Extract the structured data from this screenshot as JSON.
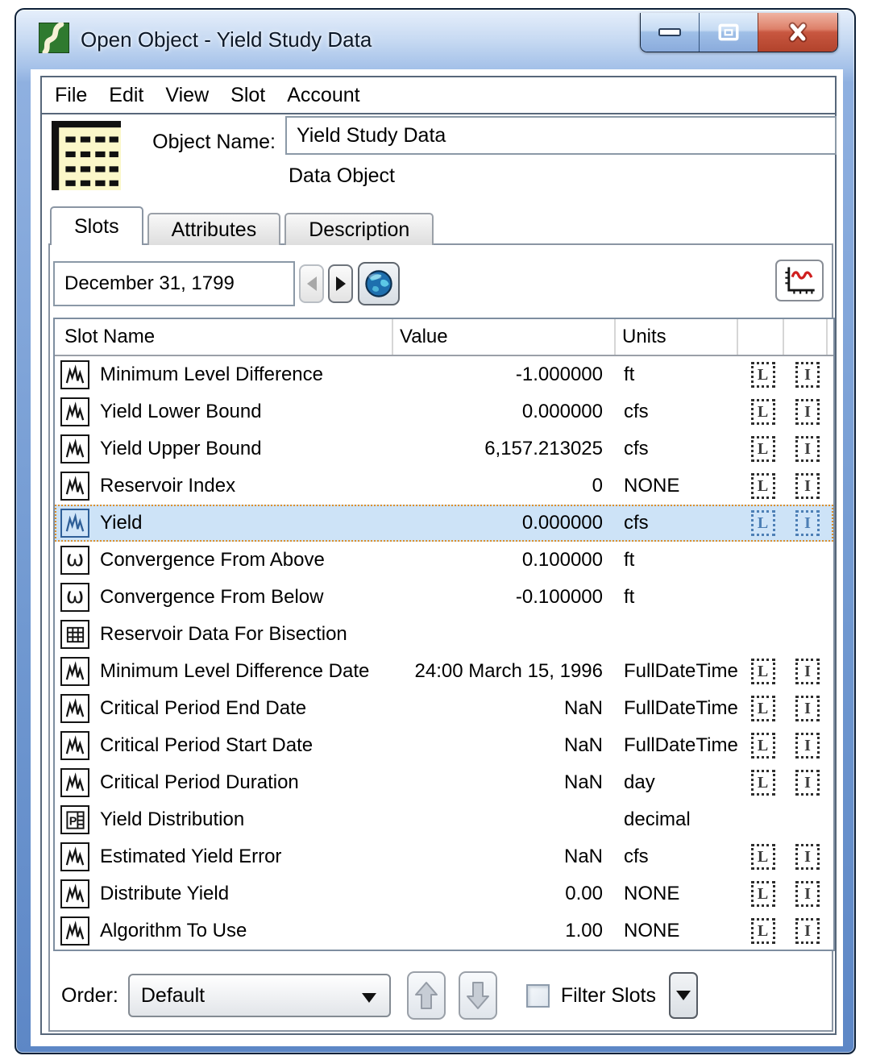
{
  "window": {
    "title": "Open Object - Yield Study Data"
  },
  "menu": {
    "items": [
      "File",
      "Edit",
      "View",
      "Slot",
      "Account"
    ]
  },
  "object": {
    "name_label": "Object Name:",
    "name": "Yield Study Data",
    "type": "Data Object"
  },
  "tabs": {
    "active": "Slots",
    "items": [
      "Slots",
      "Attributes",
      "Description"
    ]
  },
  "date_nav": {
    "date": "December 31, 1799"
  },
  "table": {
    "headers": {
      "slot_name": "Slot Name",
      "value": "Value",
      "units": "Units"
    },
    "rows": [
      {
        "icon": "series",
        "name": "Minimum Level Difference",
        "value": "-1.000000",
        "units": "ft",
        "flags": [
          "L",
          "I"
        ],
        "selected": false
      },
      {
        "icon": "series",
        "name": "Yield Lower Bound",
        "value": "0.000000",
        "units": "cfs",
        "flags": [
          "L",
          "I"
        ],
        "selected": false
      },
      {
        "icon": "series",
        "name": "Yield Upper Bound",
        "value": "6,157.213025",
        "units": "cfs",
        "flags": [
          "L",
          "I"
        ],
        "selected": false
      },
      {
        "icon": "series",
        "name": "Reservoir Index",
        "value": "0",
        "units": "NONE",
        "flags": [
          "L",
          "I"
        ],
        "selected": false
      },
      {
        "icon": "series",
        "name": "Yield",
        "value": "0.000000",
        "units": "cfs",
        "flags": [
          "L",
          "I"
        ],
        "selected": true
      },
      {
        "icon": "omega",
        "name": "Convergence From Above",
        "value": "0.100000",
        "units": "ft",
        "flags": [],
        "selected": false
      },
      {
        "icon": "omega",
        "name": "Convergence From Below",
        "value": "-0.100000",
        "units": "ft",
        "flags": [],
        "selected": false
      },
      {
        "icon": "grid",
        "name": "Reservoir Data For Bisection",
        "value": "",
        "units": "",
        "flags": [],
        "selected": false
      },
      {
        "icon": "series",
        "name": "Minimum Level Difference Date",
        "value": "24:00 March 15, 1996",
        "units": "FullDateTime",
        "flags": [
          "L",
          "I"
        ],
        "selected": false
      },
      {
        "icon": "series",
        "name": "Critical Period End Date",
        "value": "NaN",
        "units": "FullDateTime",
        "flags": [
          "L",
          "I"
        ],
        "selected": false
      },
      {
        "icon": "series",
        "name": "Critical Period Start Date",
        "value": "NaN",
        "units": "FullDateTime",
        "flags": [
          "L",
          "I"
        ],
        "selected": false
      },
      {
        "icon": "series",
        "name": "Critical Period Duration",
        "value": "NaN",
        "units": "day",
        "flags": [
          "L",
          "I"
        ],
        "selected": false
      },
      {
        "icon": "periodic",
        "name": "Yield Distribution",
        "value": "",
        "units": "decimal",
        "flags": [],
        "selected": false
      },
      {
        "icon": "series",
        "name": "Estimated Yield Error",
        "value": "NaN",
        "units": "cfs",
        "flags": [
          "L",
          "I"
        ],
        "selected": false
      },
      {
        "icon": "series",
        "name": "Distribute Yield",
        "value": "0.00",
        "units": "NONE",
        "flags": [
          "L",
          "I"
        ],
        "selected": false
      },
      {
        "icon": "series",
        "name": "Algorithm To Use",
        "value": "1.00",
        "units": "NONE",
        "flags": [
          "L",
          "I"
        ],
        "selected": false
      }
    ]
  },
  "footer": {
    "order_label": "Order:",
    "order_value": "Default",
    "filter_label": "Filter Slots"
  },
  "colors": {
    "selection_bg": "#cde3f7",
    "selection_border": "#dd8f2b",
    "titlebar_blue": "#7199d1",
    "close_red": "#c85740",
    "object_icon_yellow": "#fbf7c9"
  }
}
